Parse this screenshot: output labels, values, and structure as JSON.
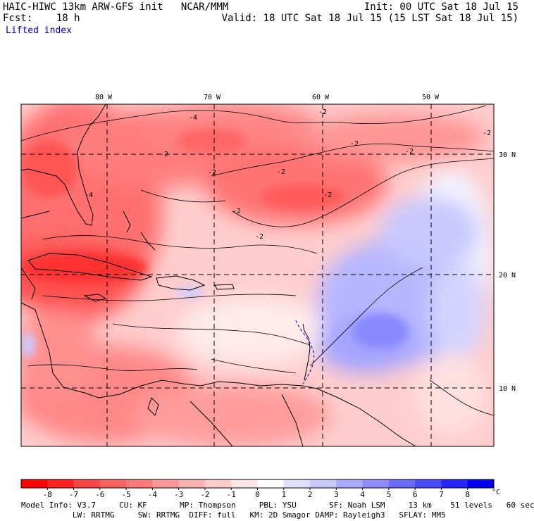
{
  "header": {
    "title": "HAIC-HIWC 13km ARW-GFS init   NCAR/MMM",
    "init": "Init: 00 UTC Sat 18 Jul 15",
    "fcst_label": "Fcst:    18 h",
    "valid": "Valid: 18 UTC Sat 18 Jul 15 (15 LST Sat 18 Jul 15)",
    "field": "Lifted index"
  },
  "map": {
    "lon_labels": [
      "80 W",
      "70 W",
      "60 W",
      "50 W"
    ],
    "lat_labels": [
      "30 N",
      "20 N",
      "10 N"
    ],
    "contour_labels": [
      "-4",
      "-2",
      "-2",
      "-2",
      "-2",
      "-2",
      "-2",
      "-2",
      "-4",
      "-2",
      "-2",
      "-2"
    ]
  },
  "colorbar": {
    "labels": [
      "-8",
      "-7",
      "-6",
      "-5",
      "-4",
      "-3",
      "-2",
      "-1",
      "0",
      "1",
      "2",
      "3",
      "4",
      "5",
      "6",
      "7",
      "8"
    ],
    "unit": "°C",
    "colors": [
      "#ff0000",
      "#ff2020",
      "#ff4545",
      "#ff6060",
      "#ff7a7a",
      "#ff9595",
      "#ffb0b0",
      "#ffcccc",
      "#ffe6e6",
      "#ffffff",
      "#e0e0ff",
      "#c8c8ff",
      "#aaaaff",
      "#8c8cff",
      "#6a6aff",
      "#4a4aff",
      "#2525ff",
      "#0000f0"
    ]
  },
  "footer": {
    "line1": "Model Info: V3.7     CU: KF       MP: Thompson     PBL: YSU       SF: Noah LSM     13 km    51 levels   60 sec",
    "line2": "           LW: RRTMG     SW: RRTMG  DIFF: full   KM: 2D Smagor DAMP: Rayleigh3   SFLAY: MM5"
  }
}
